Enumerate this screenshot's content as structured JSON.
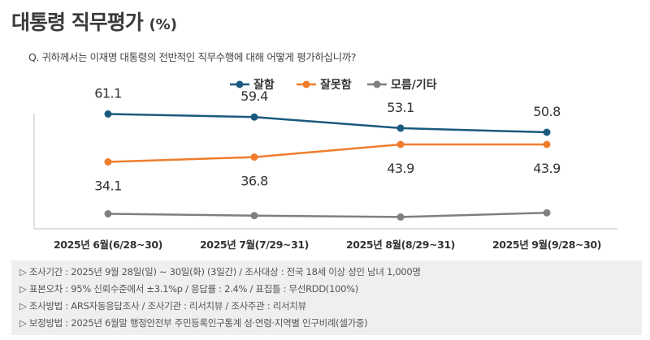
{
  "header": {
    "title": "대통령 직무평가",
    "unit": "(%)",
    "question": "Q. 귀하께서는 이재명 대통령의 전반적인 직무수행에 대해 어떻게 평가하십니까?"
  },
  "colors": {
    "good": "#1a5a7e",
    "bad": "#ef7d2d",
    "other": "#7f7f7f",
    "axis": "#bfbfbf"
  },
  "chart_data": {
    "type": "line",
    "categories": [
      "2025년 6월(6/28~30)",
      "2025년 7월(7/29~31)",
      "2025년 8월(8/29~31)",
      "2025년 9월(9/28~30)"
    ],
    "series": [
      {
        "name": "잘함",
        "values": [
          61.1,
          59.4,
          53.1,
          50.8
        ],
        "labels": [
          "61.1",
          "59.4",
          "53.1",
          "50.8"
        ],
        "label_position": "above"
      },
      {
        "name": "잘못함",
        "values": [
          34.1,
          36.8,
          43.9,
          43.9
        ],
        "labels": [
          "34.1",
          "36.8",
          "43.9",
          "43.9"
        ],
        "label_position": "below"
      },
      {
        "name": "모름/기타",
        "values": [
          4.8,
          3.8,
          3.0,
          5.4
        ]
      }
    ],
    "ylim": [
      0,
      70
    ],
    "legend_position": "top-center"
  },
  "notes": [
    "▷ 조사기간 : 2025년 9월 28일(일) ~ 30일(화) (3일간) / 조사대상 : 전국 18세 이상 성인 남녀 1,000명",
    "▷ 표본오차 : 95% 신뢰수준에서 ±3.1%p / 응답률 : 2.4% / 표집틀 : 무선RDD(100%)",
    "▷ 조사방법 : ARS자동응답조사 / 조사기관 : 리서치뷰 / 조사주관 : 리서치뷰",
    "▷ 보정방법 : 2025년 6월말 행정안전부 주민등록인구통계 성·연령·지역별 인구비례(셀가중)"
  ]
}
